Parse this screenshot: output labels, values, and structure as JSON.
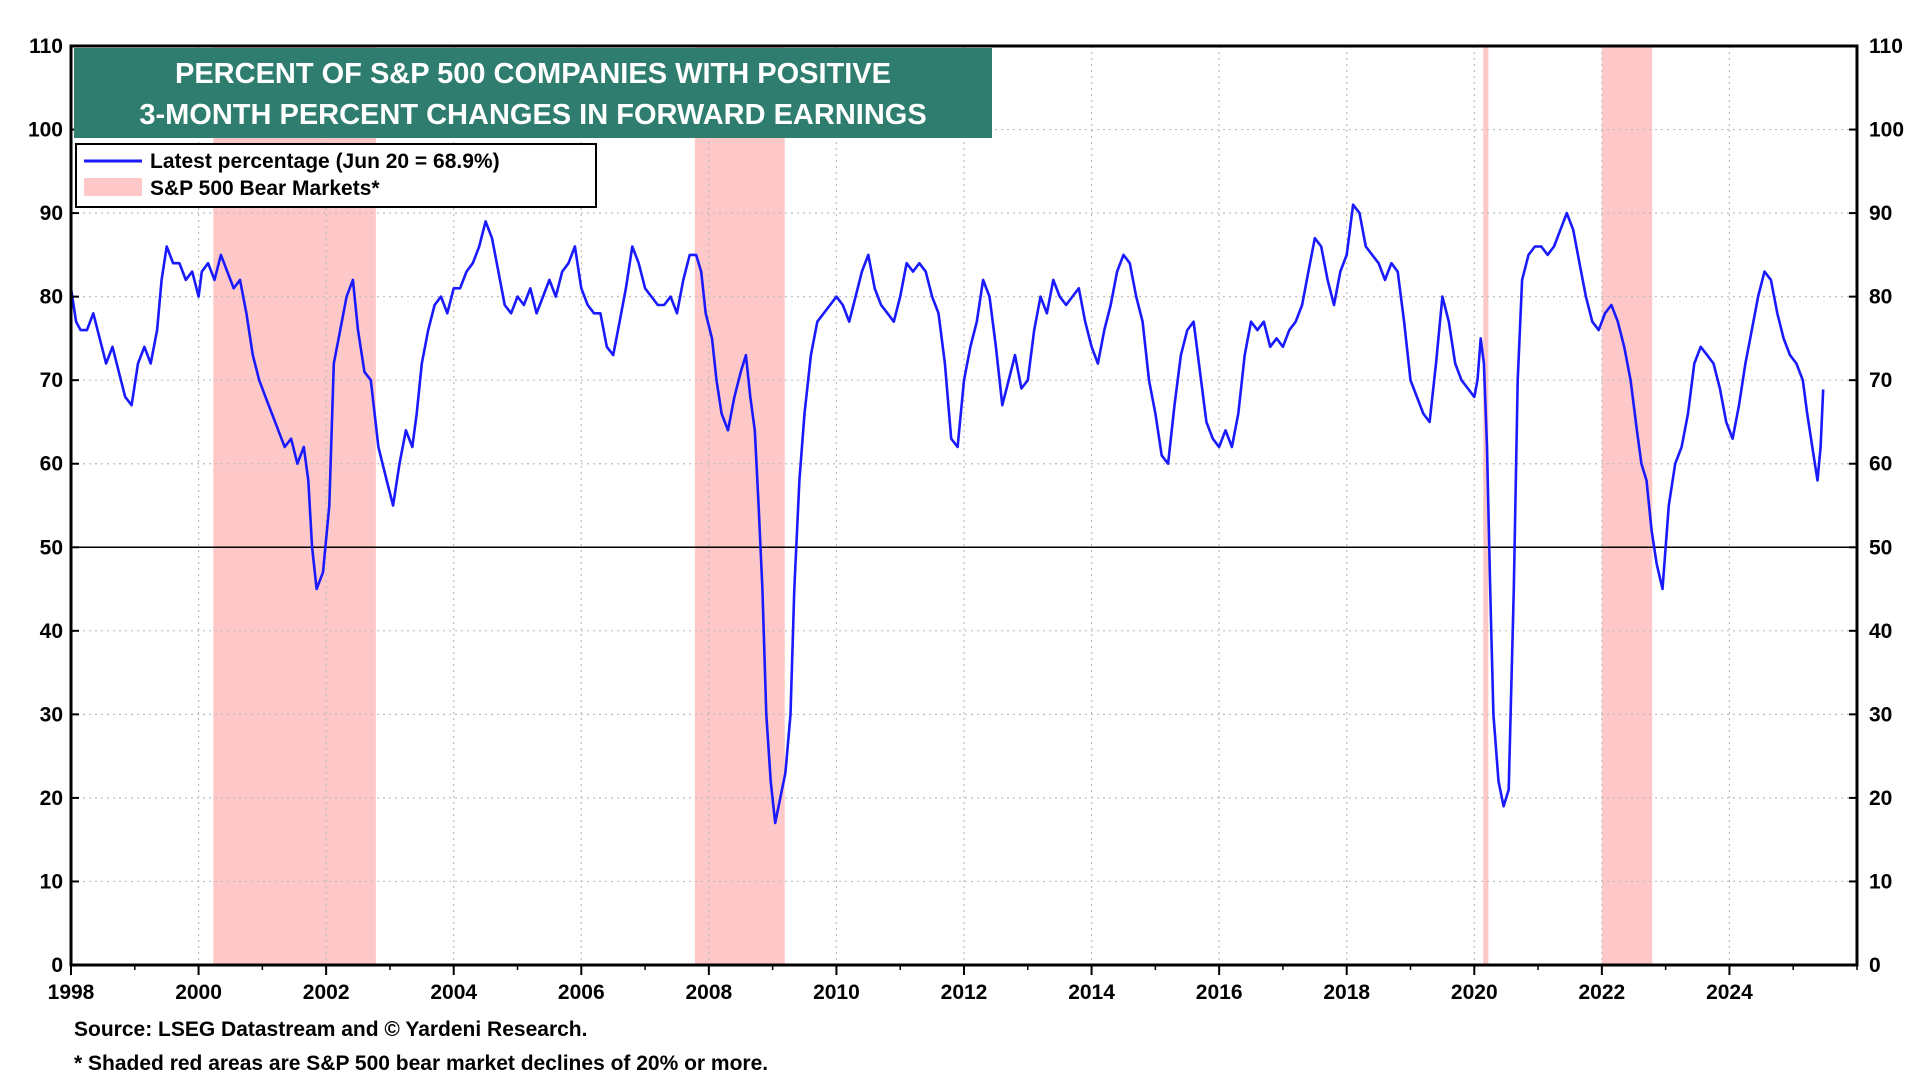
{
  "chart_data": {
    "type": "line",
    "title_lines": [
      "PERCENT OF S&P 500 COMPANIES WITH POSITIVE",
      "3-MONTH PERCENT CHANGES IN FORWARD EARNINGS"
    ],
    "xlim": [
      1998,
      2026
    ],
    "ylim": [
      0,
      110
    ],
    "x_ticks": [
      1998,
      2000,
      2002,
      2004,
      2006,
      2008,
      2010,
      2012,
      2014,
      2016,
      2018,
      2020,
      2022,
      2024
    ],
    "y_ticks": [
      0,
      10,
      20,
      30,
      40,
      50,
      60,
      70,
      80,
      90,
      100,
      110
    ],
    "grid": true,
    "reference_line": 50,
    "legend": {
      "placement": "top-left",
      "entries": [
        {
          "label": "Latest percentage (Jun 20 = 68.9%)",
          "kind": "line"
        },
        {
          "label": "S&P 500 Bear Markets*",
          "kind": "shade"
        }
      ]
    },
    "colors": {
      "line": "#1a1aff",
      "shade": "#ffc8c8",
      "title_bg": "#2e7d6e",
      "title_text": "#ffffff"
    },
    "bear_markets": [
      {
        "start": 2000.23,
        "end": 2002.78
      },
      {
        "start": 2007.78,
        "end": 2009.19
      },
      {
        "start": 2020.14,
        "end": 2020.22
      },
      {
        "start": 2022.0,
        "end": 2022.79
      }
    ],
    "series": [
      {
        "values": [
          [
            1998.0,
            81
          ],
          [
            1998.08,
            77
          ],
          [
            1998.15,
            76
          ],
          [
            1998.25,
            76
          ],
          [
            1998.35,
            78
          ],
          [
            1998.45,
            75
          ],
          [
            1998.55,
            72
          ],
          [
            1998.65,
            74
          ],
          [
            1998.75,
            71
          ],
          [
            1998.85,
            68
          ],
          [
            1998.95,
            67
          ],
          [
            1999.05,
            72
          ],
          [
            1999.15,
            74
          ],
          [
            1999.25,
            72
          ],
          [
            1999.35,
            76
          ],
          [
            1999.42,
            82
          ],
          [
            1999.5,
            86
          ],
          [
            1999.6,
            84
          ],
          [
            1999.7,
            84
          ],
          [
            1999.8,
            82
          ],
          [
            1999.9,
            83
          ],
          [
            2000.0,
            80
          ],
          [
            2000.05,
            83
          ],
          [
            2000.15,
            84
          ],
          [
            2000.25,
            82
          ],
          [
            2000.35,
            85
          ],
          [
            2000.45,
            83
          ],
          [
            2000.55,
            81
          ],
          [
            2000.65,
            82
          ],
          [
            2000.75,
            78
          ],
          [
            2000.85,
            73
          ],
          [
            2000.95,
            70
          ],
          [
            2001.05,
            68
          ],
          [
            2001.15,
            66
          ],
          [
            2001.25,
            64
          ],
          [
            2001.35,
            62
          ],
          [
            2001.45,
            63
          ],
          [
            2001.55,
            60
          ],
          [
            2001.65,
            62
          ],
          [
            2001.72,
            58
          ],
          [
            2001.78,
            50
          ],
          [
            2001.85,
            45
          ],
          [
            2001.95,
            47
          ],
          [
            2002.05,
            55
          ],
          [
            2002.12,
            72
          ],
          [
            2002.22,
            76
          ],
          [
            2002.32,
            80
          ],
          [
            2002.42,
            82
          ],
          [
            2002.5,
            76
          ],
          [
            2002.6,
            71
          ],
          [
            2002.7,
            70
          ],
          [
            2002.82,
            62
          ],
          [
            2002.95,
            58
          ],
          [
            2003.05,
            55
          ],
          [
            2003.15,
            60
          ],
          [
            2003.25,
            64
          ],
          [
            2003.35,
            62
          ],
          [
            2003.42,
            66
          ],
          [
            2003.5,
            72
          ],
          [
            2003.6,
            76
          ],
          [
            2003.7,
            79
          ],
          [
            2003.8,
            80
          ],
          [
            2003.9,
            78
          ],
          [
            2004.0,
            81
          ],
          [
            2004.1,
            81
          ],
          [
            2004.2,
            83
          ],
          [
            2004.3,
            84
          ],
          [
            2004.4,
            86
          ],
          [
            2004.5,
            89
          ],
          [
            2004.6,
            87
          ],
          [
            2004.7,
            83
          ],
          [
            2004.8,
            79
          ],
          [
            2004.9,
            78
          ],
          [
            2005.0,
            80
          ],
          [
            2005.1,
            79
          ],
          [
            2005.2,
            81
          ],
          [
            2005.3,
            78
          ],
          [
            2005.4,
            80
          ],
          [
            2005.5,
            82
          ],
          [
            2005.6,
            80
          ],
          [
            2005.7,
            83
          ],
          [
            2005.8,
            84
          ],
          [
            2005.9,
            86
          ],
          [
            2006.0,
            81
          ],
          [
            2006.1,
            79
          ],
          [
            2006.2,
            78
          ],
          [
            2006.3,
            78
          ],
          [
            2006.4,
            74
          ],
          [
            2006.5,
            73
          ],
          [
            2006.6,
            77
          ],
          [
            2006.7,
            81
          ],
          [
            2006.8,
            86
          ],
          [
            2006.9,
            84
          ],
          [
            2007.0,
            81
          ],
          [
            2007.1,
            80
          ],
          [
            2007.2,
            79
          ],
          [
            2007.3,
            79
          ],
          [
            2007.4,
            80
          ],
          [
            2007.5,
            78
          ],
          [
            2007.6,
            82
          ],
          [
            2007.7,
            85
          ],
          [
            2007.8,
            85
          ],
          [
            2007.88,
            83
          ],
          [
            2007.95,
            78
          ],
          [
            2008.05,
            75
          ],
          [
            2008.12,
            70
          ],
          [
            2008.2,
            66
          ],
          [
            2008.3,
            64
          ],
          [
            2008.4,
            68
          ],
          [
            2008.5,
            71
          ],
          [
            2008.58,
            73
          ],
          [
            2008.65,
            68
          ],
          [
            2008.72,
            64
          ],
          [
            2008.78,
            55
          ],
          [
            2008.84,
            45
          ],
          [
            2008.9,
            30
          ],
          [
            2008.97,
            22
          ],
          [
            2009.04,
            17
          ],
          [
            2009.12,
            20
          ],
          [
            2009.2,
            23
          ],
          [
            2009.28,
            30
          ],
          [
            2009.34,
            45
          ],
          [
            2009.42,
            58
          ],
          [
            2009.5,
            66
          ],
          [
            2009.6,
            73
          ],
          [
            2009.7,
            77
          ],
          [
            2009.8,
            78
          ],
          [
            2009.9,
            79
          ],
          [
            2010.0,
            80
          ],
          [
            2010.1,
            79
          ],
          [
            2010.2,
            77
          ],
          [
            2010.3,
            80
          ],
          [
            2010.4,
            83
          ],
          [
            2010.5,
            85
          ],
          [
            2010.6,
            81
          ],
          [
            2010.7,
            79
          ],
          [
            2010.8,
            78
          ],
          [
            2010.9,
            77
          ],
          [
            2011.0,
            80
          ],
          [
            2011.1,
            84
          ],
          [
            2011.2,
            83
          ],
          [
            2011.3,
            84
          ],
          [
            2011.4,
            83
          ],
          [
            2011.5,
            80
          ],
          [
            2011.6,
            78
          ],
          [
            2011.7,
            72
          ],
          [
            2011.8,
            63
          ],
          [
            2011.9,
            62
          ],
          [
            2012.0,
            70
          ],
          [
            2012.1,
            74
          ],
          [
            2012.2,
            77
          ],
          [
            2012.3,
            82
          ],
          [
            2012.4,
            80
          ],
          [
            2012.5,
            74
          ],
          [
            2012.6,
            67
          ],
          [
            2012.7,
            70
          ],
          [
            2012.8,
            73
          ],
          [
            2012.9,
            69
          ],
          [
            2013.0,
            70
          ],
          [
            2013.1,
            76
          ],
          [
            2013.2,
            80
          ],
          [
            2013.3,
            78
          ],
          [
            2013.4,
            82
          ],
          [
            2013.5,
            80
          ],
          [
            2013.6,
            79
          ],
          [
            2013.7,
            80
          ],
          [
            2013.8,
            81
          ],
          [
            2013.9,
            77
          ],
          [
            2014.0,
            74
          ],
          [
            2014.1,
            72
          ],
          [
            2014.2,
            76
          ],
          [
            2014.3,
            79
          ],
          [
            2014.4,
            83
          ],
          [
            2014.5,
            85
          ],
          [
            2014.6,
            84
          ],
          [
            2014.7,
            80
          ],
          [
            2014.8,
            77
          ],
          [
            2014.9,
            70
          ],
          [
            2015.0,
            66
          ],
          [
            2015.1,
            61
          ],
          [
            2015.2,
            60
          ],
          [
            2015.3,
            67
          ],
          [
            2015.4,
            73
          ],
          [
            2015.5,
            76
          ],
          [
            2015.6,
            77
          ],
          [
            2015.7,
            71
          ],
          [
            2015.8,
            65
          ],
          [
            2015.9,
            63
          ],
          [
            2016.0,
            62
          ],
          [
            2016.1,
            64
          ],
          [
            2016.2,
            62
          ],
          [
            2016.3,
            66
          ],
          [
            2016.4,
            73
          ],
          [
            2016.5,
            77
          ],
          [
            2016.6,
            76
          ],
          [
            2016.7,
            77
          ],
          [
            2016.8,
            74
          ],
          [
            2016.9,
            75
          ],
          [
            2017.0,
            74
          ],
          [
            2017.1,
            76
          ],
          [
            2017.2,
            77
          ],
          [
            2017.3,
            79
          ],
          [
            2017.4,
            83
          ],
          [
            2017.5,
            87
          ],
          [
            2017.6,
            86
          ],
          [
            2017.7,
            82
          ],
          [
            2017.8,
            79
          ],
          [
            2017.9,
            83
          ],
          [
            2018.0,
            85
          ],
          [
            2018.1,
            91
          ],
          [
            2018.2,
            90
          ],
          [
            2018.3,
            86
          ],
          [
            2018.4,
            85
          ],
          [
            2018.5,
            84
          ],
          [
            2018.6,
            82
          ],
          [
            2018.7,
            84
          ],
          [
            2018.8,
            83
          ],
          [
            2018.9,
            77
          ],
          [
            2019.0,
            70
          ],
          [
            2019.1,
            68
          ],
          [
            2019.2,
            66
          ],
          [
            2019.3,
            65
          ],
          [
            2019.4,
            72
          ],
          [
            2019.5,
            80
          ],
          [
            2019.6,
            77
          ],
          [
            2019.7,
            72
          ],
          [
            2019.8,
            70
          ],
          [
            2019.9,
            69
          ],
          [
            2020.0,
            68
          ],
          [
            2020.05,
            70
          ],
          [
            2020.1,
            75
          ],
          [
            2020.15,
            72
          ],
          [
            2020.2,
            62
          ],
          [
            2020.25,
            45
          ],
          [
            2020.3,
            30
          ],
          [
            2020.38,
            22
          ],
          [
            2020.46,
            19
          ],
          [
            2020.54,
            21
          ],
          [
            2020.62,
            45
          ],
          [
            2020.68,
            70
          ],
          [
            2020.75,
            82
          ],
          [
            2020.85,
            85
          ],
          [
            2020.95,
            86
          ],
          [
            2021.05,
            86
          ],
          [
            2021.15,
            85
          ],
          [
            2021.25,
            86
          ],
          [
            2021.35,
            88
          ],
          [
            2021.45,
            90
          ],
          [
            2021.55,
            88
          ],
          [
            2021.65,
            84
          ],
          [
            2021.75,
            80
          ],
          [
            2021.85,
            77
          ],
          [
            2021.95,
            76
          ],
          [
            2022.05,
            78
          ],
          [
            2022.15,
            79
          ],
          [
            2022.25,
            77
          ],
          [
            2022.35,
            74
          ],
          [
            2022.45,
            70
          ],
          [
            2022.55,
            64
          ],
          [
            2022.62,
            60
          ],
          [
            2022.7,
            58
          ],
          [
            2022.78,
            52
          ],
          [
            2022.86,
            48
          ],
          [
            2022.95,
            45
          ],
          [
            2023.05,
            55
          ],
          [
            2023.15,
            60
          ],
          [
            2023.25,
            62
          ],
          [
            2023.35,
            66
          ],
          [
            2023.45,
            72
          ],
          [
            2023.55,
            74
          ],
          [
            2023.65,
            73
          ],
          [
            2023.75,
            72
          ],
          [
            2023.85,
            69
          ],
          [
            2023.95,
            65
          ],
          [
            2024.05,
            63
          ],
          [
            2024.15,
            67
          ],
          [
            2024.25,
            72
          ],
          [
            2024.35,
            76
          ],
          [
            2024.45,
            80
          ],
          [
            2024.55,
            83
          ],
          [
            2024.65,
            82
          ],
          [
            2024.75,
            78
          ],
          [
            2024.85,
            75
          ],
          [
            2024.95,
            73
          ],
          [
            2025.05,
            72
          ],
          [
            2025.15,
            70
          ],
          [
            2025.22,
            66
          ],
          [
            2025.3,
            62
          ],
          [
            2025.38,
            58
          ],
          [
            2025.43,
            62
          ],
          [
            2025.47,
            68.9
          ]
        ]
      }
    ],
    "source_text": "Source: LSEG Datastream and © Yardeni Research.",
    "footnote_text": "* Shaded red areas are S&P 500 bear market declines of 20% or more."
  }
}
